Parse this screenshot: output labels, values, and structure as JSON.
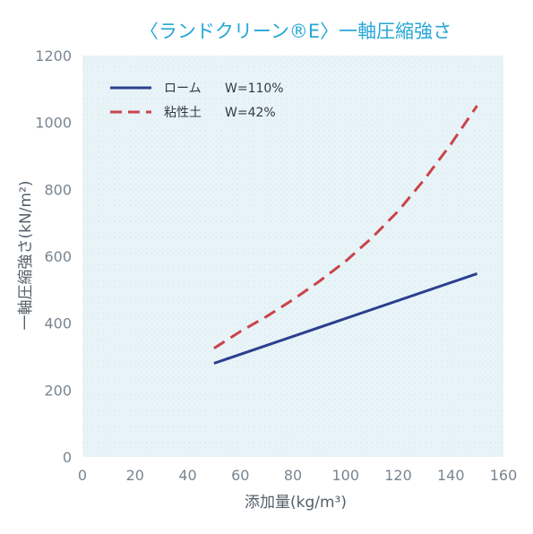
{
  "chart_data": {
    "type": "line",
    "title": "〈ランドクリーン®E〉一軸圧縮強さ",
    "xlabel": "添加量(kg/m³)",
    "ylabel": "一軸圧縮強さ(kN/m²)",
    "xlim": [
      0,
      160
    ],
    "ylim": [
      0,
      1200
    ],
    "xticks": [
      "0",
      "20",
      "40",
      "60",
      "80",
      "100",
      "120",
      "140",
      "160"
    ],
    "yticks": [
      "0",
      "200",
      "400",
      "600",
      "800",
      "1000",
      "1200"
    ],
    "grid": false,
    "legend_position": "top-left",
    "series": [
      {
        "name": "ローム",
        "condition": "W=110%",
        "style": "solid",
        "color": "#2b3f8f",
        "x": [
          50,
          150
        ],
        "y": [
          280,
          548
        ]
      },
      {
        "name": "粘性土",
        "condition": "W=42%",
        "style": "dashed",
        "color": "#c9444a",
        "x": [
          50,
          60,
          70,
          80,
          90,
          100,
          110,
          120,
          130,
          140,
          150
        ],
        "y": [
          325,
          375,
          420,
          470,
          525,
          585,
          655,
          735,
          830,
          935,
          1050
        ]
      }
    ]
  }
}
